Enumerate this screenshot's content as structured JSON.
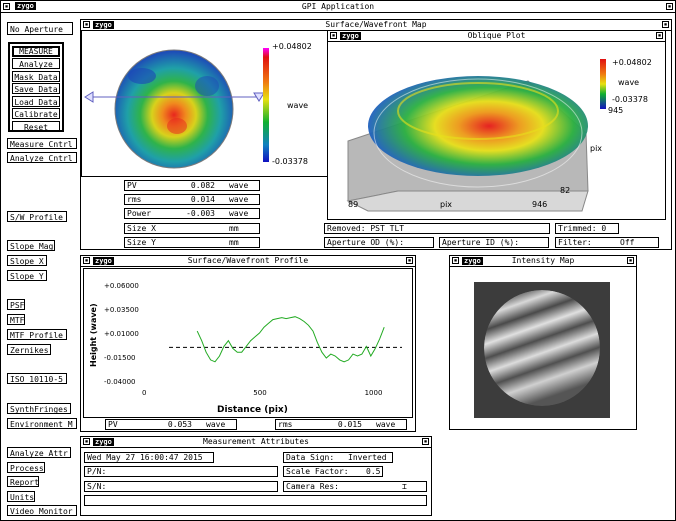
{
  "app": {
    "title": "GPI Application",
    "logo": "zygo"
  },
  "left_buttons": {
    "no_aperture": "No Aperture",
    "measure": "MEASURE",
    "analyze": "Analyze",
    "mask_data": "Mask Data",
    "save_data": "Save Data",
    "load_data": "Load Data",
    "calibrate": "Calibrate",
    "reset": "Reset",
    "measure_cntrl": "Measure Cntrl",
    "analyze_cntrl": "Analyze Cntrl",
    "sw_profile": "S/W Profile",
    "slope_mag": "Slope Mag",
    "slope_x": "Slope X",
    "slope_y": "Slope Y",
    "psf": "PSF",
    "mtf": "MTF",
    "mtf_profile": "MTF Profile",
    "zernikes": "Zernikes",
    "iso": "ISO 10110-5",
    "synth_fringes": "SynthFringes",
    "environment": "Environment M",
    "analyze_attr": "Analyze Attr",
    "process": "Process",
    "report": "Report",
    "units": "Units",
    "video_monitor": "Video Monitor"
  },
  "surface_map": {
    "title": "Surface/Wavefront Map",
    "scale_max": "+0.04802",
    "scale_min": "-0.03378",
    "scale_unit": "wave"
  },
  "oblique": {
    "title": "Oblique Plot",
    "scale_max": "+0.04802",
    "scale_unit": "wave",
    "scale_min": "-0.03378",
    "y_max": "945",
    "y_label": "pix",
    "y_min": "82",
    "x_min": "89",
    "x_label": "pix",
    "x_max": "946"
  },
  "results": {
    "pv": {
      "label": "PV",
      "value": "0.082",
      "unit": "wave"
    },
    "rms": {
      "label": "rms",
      "value": "0.014",
      "unit": "wave"
    },
    "power": {
      "label": "Power",
      "value": "-0.003",
      "unit": "wave"
    },
    "size_x": {
      "label": "Size X",
      "value": "",
      "unit": "mm"
    },
    "size_y": {
      "label": "Size Y",
      "value": "",
      "unit": "mm"
    }
  },
  "removed": {
    "label": "Removed:",
    "value": "PST TLT"
  },
  "trimmed": {
    "label": "Trimmed:",
    "value": "0"
  },
  "aperture_od": {
    "label": "Aperture OD (%):",
    "value": ""
  },
  "aperture_id": {
    "label": "Aperture ID (%):",
    "value": ""
  },
  "filter": {
    "label": "Filter:",
    "value": "Off"
  },
  "profile": {
    "title": "Surface/Wavefront Profile",
    "y_label": "Height (wave)",
    "x_label": "Distance (pix)",
    "y_ticks": [
      "+0.06000",
      "+0.03500",
      "+0.01000",
      "-0.01500",
      "-0.04000"
    ],
    "x_ticks": [
      "0",
      "500",
      "1000"
    ],
    "pv": {
      "label": "PV",
      "value": "0.053",
      "unit": "wave"
    },
    "rms": {
      "label": "rms",
      "value": "0.015",
      "unit": "wave"
    }
  },
  "intensity": {
    "title": "Intensity Map"
  },
  "attributes": {
    "title": "Measurement Attributes",
    "date": "Wed May 27 16:00:47 2015",
    "pn_label": "P/N:",
    "pn_value": "",
    "sn_label": "S/N:",
    "sn_value": "",
    "data_sign_label": "Data Sign:",
    "data_sign_value": "Inverted",
    "scale_factor_label": "Scale Factor:",
    "scale_factor_value": "0.5",
    "camera_res_label": "Camera Res:",
    "camera_res_value": ""
  },
  "chart_data": {
    "type": "line",
    "x_range": [
      0,
      1150
    ],
    "y_range": [
      -0.04,
      0.06
    ],
    "reference_line": -0.005,
    "series": [
      {
        "x": [
          230,
          250,
          270,
          290,
          310,
          330,
          350,
          370,
          390,
          410,
          430,
          450,
          470,
          490,
          510,
          530,
          550,
          570,
          590,
          610,
          630,
          650,
          670,
          690,
          710,
          730,
          750,
          770,
          790,
          810,
          830,
          850,
          870,
          890,
          910,
          930,
          950,
          970,
          990,
          1010,
          1030,
          1050,
          1070
        ],
        "y": [
          0.012,
          0.002,
          -0.01,
          -0.018,
          -0.02,
          -0.014,
          -0.004,
          0.002,
          -0.006,
          -0.01,
          -0.01,
          -0.004,
          0.002,
          0.006,
          0.01,
          0.016,
          0.02,
          0.024,
          0.025,
          0.026,
          0.025,
          0.026,
          0.027,
          0.025,
          0.022,
          0.018,
          0.012,
          0.0,
          -0.01,
          -0.016,
          -0.012,
          -0.014,
          -0.018,
          -0.02,
          -0.018,
          -0.012,
          -0.014,
          -0.012,
          -0.004,
          -0.014,
          -0.006,
          0.004,
          0.016
        ]
      }
    ]
  }
}
